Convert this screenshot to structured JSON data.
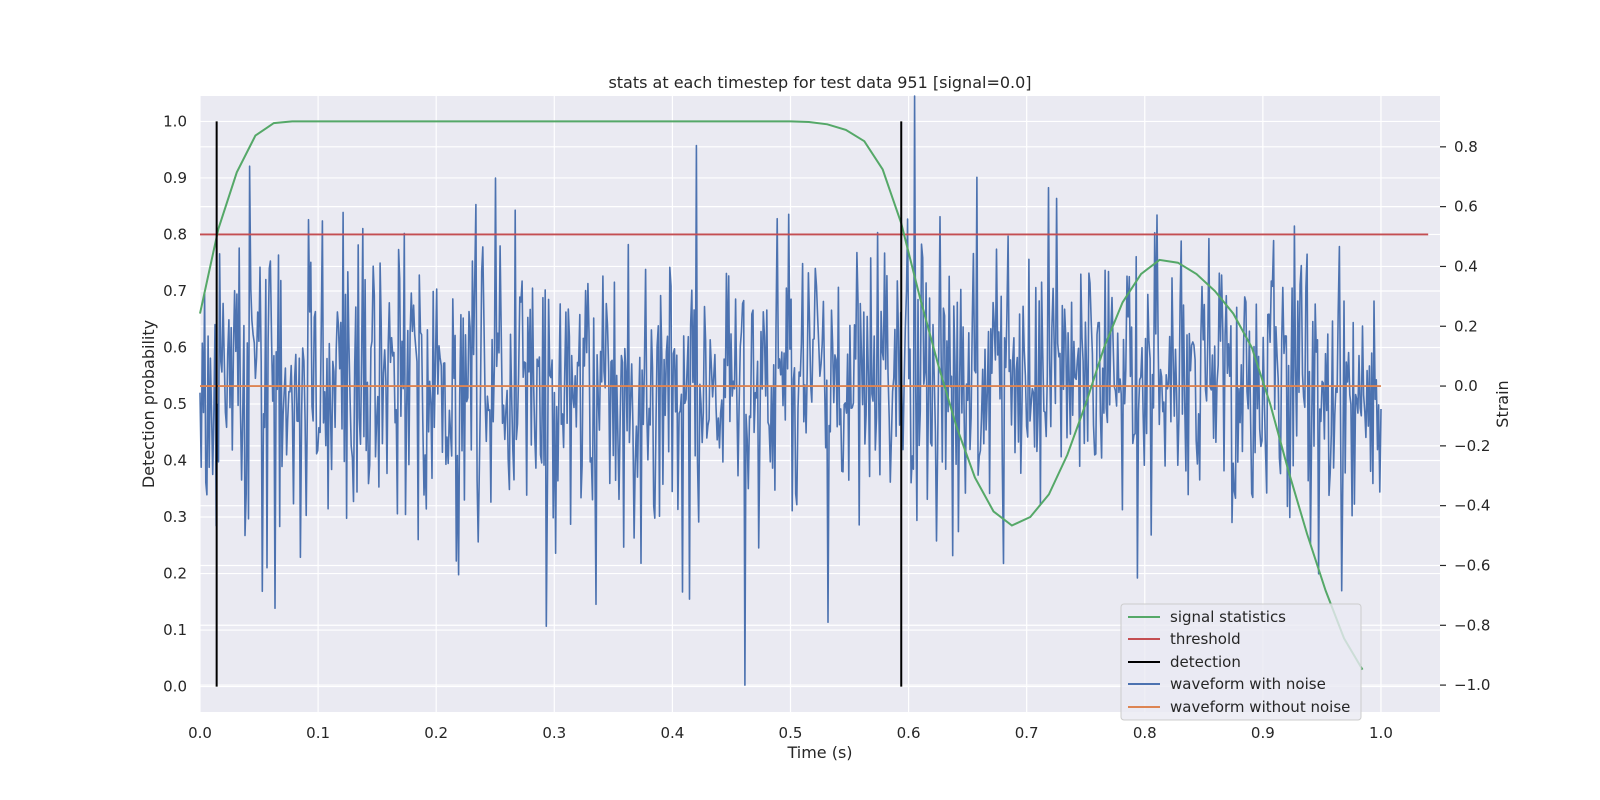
{
  "chart_data": {
    "type": "line",
    "title": "stats at each timestep for test data 951 [signal=0.0]",
    "xlabel": "Time (s)",
    "ylabel": "Detection probability",
    "y2label": "Strain",
    "xlim": [
      0.0,
      1.05
    ],
    "ylim": [
      -0.045,
      1.045
    ],
    "y2lim": [
      -1.09,
      0.97
    ],
    "xticks": [
      "0.0",
      "0.1",
      "0.2",
      "0.3",
      "0.4",
      "0.5",
      "0.6",
      "0.7",
      "0.8",
      "0.9",
      "1.0"
    ],
    "yticks": [
      "0.0",
      "0.1",
      "0.2",
      "0.3",
      "0.4",
      "0.5",
      "0.6",
      "0.7",
      "0.8",
      "0.9",
      "1.0"
    ],
    "y2ticks": [
      "−1.0",
      "−0.8",
      "−0.6",
      "−0.4",
      "−0.2",
      "0.0",
      "0.2",
      "0.4",
      "0.6",
      "0.8"
    ],
    "grid": true,
    "legend_position": "bottom-right",
    "colors": {
      "signal_statistics": "#55a868",
      "threshold": "#c44e52",
      "detection": "#000000",
      "waveform_with_noise": "#4c72b0",
      "waveform_without_noise": "#dd8452",
      "background": "#eaeaf2",
      "grid": "#ffffff"
    },
    "signal_statistics": {
      "name": "signal statistics",
      "x": [
        0.0,
        0.0156,
        0.0312,
        0.0469,
        0.0625,
        0.0781,
        0.0938,
        0.5,
        0.5156,
        0.5312,
        0.5469,
        0.5625,
        0.5781,
        0.5938,
        0.6094,
        0.625,
        0.6406,
        0.6562,
        0.6719,
        0.6875,
        0.7031,
        0.7188,
        0.7344,
        0.75,
        0.7656,
        0.7812,
        0.7969,
        0.8125,
        0.8281,
        0.8438,
        0.8594,
        0.875,
        0.8906,
        0.9062,
        0.9219,
        0.9375,
        0.9531,
        0.9688,
        0.9844
      ],
      "y": [
        0.66,
        0.81,
        0.91,
        0.975,
        0.997,
        1.0,
        1.0,
        1.0,
        0.999,
        0.995,
        0.985,
        0.965,
        0.915,
        0.82,
        0.69,
        0.57,
        0.46,
        0.37,
        0.31,
        0.285,
        0.3,
        0.34,
        0.41,
        0.5,
        0.6,
        0.68,
        0.73,
        0.755,
        0.75,
        0.73,
        0.7,
        0.66,
        0.6,
        0.5,
        0.38,
        0.27,
        0.17,
        0.085,
        0.03
      ]
    },
    "threshold": {
      "name": "threshold",
      "value": 0.8,
      "x": [
        0.0,
        1.04
      ]
    },
    "detection": {
      "name": "detection",
      "x": [
        0.0141,
        0.5938
      ],
      "y": [
        0.0,
        1.0
      ]
    },
    "waveform_with_noise": {
      "name": "waveform with noise",
      "axis": "strain",
      "x_range": [
        0.0,
        1.0
      ],
      "n": 1024,
      "note_points": {
        "max": {
          "x": 0.6055,
          "y": 0.97
        },
        "min": {
          "x": 0.4609,
          "y": -1.0
        }
      },
      "approx_std": 0.25,
      "approx_max": 0.97,
      "approx_min": -1.0
    },
    "waveform_without_noise": {
      "name": "waveform without noise",
      "axis": "strain",
      "x": [
        0.0,
        1.0
      ],
      "value": 0.0
    },
    "legend": [
      "signal statistics",
      "threshold",
      "detection",
      "waveform with noise",
      "waveform without noise"
    ]
  }
}
